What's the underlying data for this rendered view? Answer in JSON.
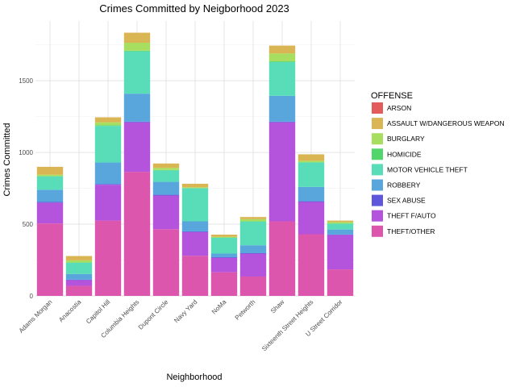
{
  "chart_data": {
    "type": "bar",
    "stacked": true,
    "title": "Crimes Committed by Neigborhood 2023",
    "xlabel": "Neighborhood",
    "ylabel": "Crimes Committed",
    "ylim": [
      0,
      1900
    ],
    "yticks": [
      0,
      500,
      1000,
      1500
    ],
    "grid": true,
    "legend_title": "OFFENSE",
    "legend_position": "right",
    "categories": [
      "Adams Morgan",
      "Anacostia",
      "Capitol Hill",
      "Columbia Heights",
      "Dupont Circle",
      "Navy Yard",
      "NoMa",
      "Petworth",
      "Shaw",
      "Sixteenth Street Heights",
      "U Street Corridor"
    ],
    "series": [
      {
        "name": "ARSON",
        "color": "#E35B5B",
        "values": [
          0,
          0,
          0,
          0,
          0,
          0,
          0,
          0,
          0,
          0,
          0
        ]
      },
      {
        "name": "ASSAULT W/DANGEROUS WEAPON",
        "color": "#D9B554",
        "values": [
          55,
          30,
          35,
          70,
          30,
          25,
          15,
          15,
          55,
          45,
          10
        ]
      },
      {
        "name": "BURGLARY",
        "color": "#A8DE5F",
        "values": [
          10,
          15,
          20,
          55,
          15,
          5,
          5,
          15,
          55,
          10,
          10
        ]
      },
      {
        "name": "HOMICIDE",
        "color": "#52D66B",
        "values": [
          2,
          2,
          5,
          5,
          3,
          2,
          2,
          2,
          5,
          2,
          2
        ]
      },
      {
        "name": "MOTOR VEHICLE THEFT",
        "color": "#58DDB8",
        "values": [
          93,
          78,
          255,
          295,
          80,
          230,
          110,
          165,
          235,
          170,
          40
        ]
      },
      {
        "name": "ROBBERY",
        "color": "#58A6DC",
        "values": [
          85,
          40,
          150,
          195,
          90,
          70,
          25,
          55,
          180,
          100,
          35
        ]
      },
      {
        "name": "SEX ABUSE",
        "color": "#5E57DB",
        "values": [
          5,
          3,
          5,
          5,
          5,
          5,
          5,
          3,
          5,
          5,
          3
        ]
      },
      {
        "name": "THEFT F/AUTO",
        "color": "#B454DC",
        "values": [
          145,
          40,
          250,
          345,
          235,
          165,
          100,
          160,
          690,
          225,
          240
        ]
      },
      {
        "name": "THEFT/OTHER",
        "color": "#DD56AE",
        "values": [
          505,
          70,
          525,
          865,
          465,
          280,
          165,
          135,
          520,
          430,
          185
        ]
      }
    ]
  }
}
